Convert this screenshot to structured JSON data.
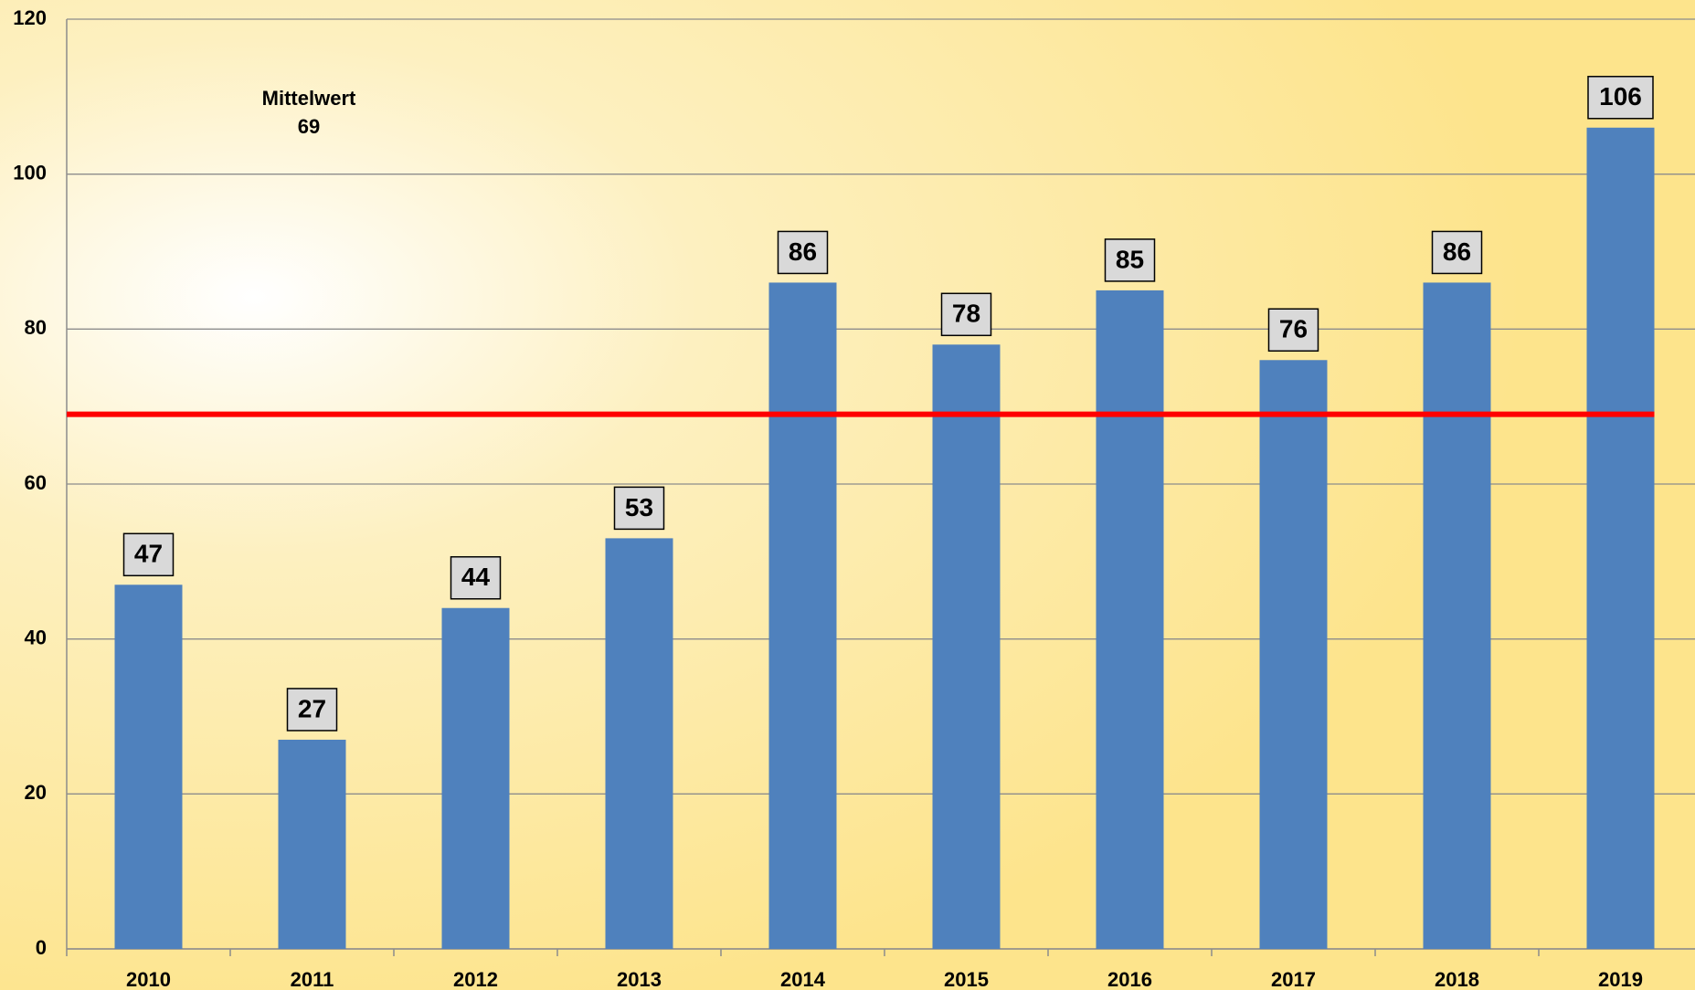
{
  "chart_data": {
    "type": "bar",
    "categories": [
      "2010",
      "2011",
      "2012",
      "2013",
      "2014",
      "2015",
      "2016",
      "2017",
      "2018",
      "2019"
    ],
    "values": [
      47,
      27,
      44,
      53,
      86,
      78,
      85,
      76,
      86,
      106
    ],
    "color": "#4f81bd",
    "ylim": [
      0,
      120
    ],
    "yticks": [
      0,
      20,
      40,
      60,
      80,
      100,
      120
    ],
    "grid": true,
    "mean_label": "Mittelwert",
    "mean": 69,
    "mean_color": "#ff0000"
  }
}
